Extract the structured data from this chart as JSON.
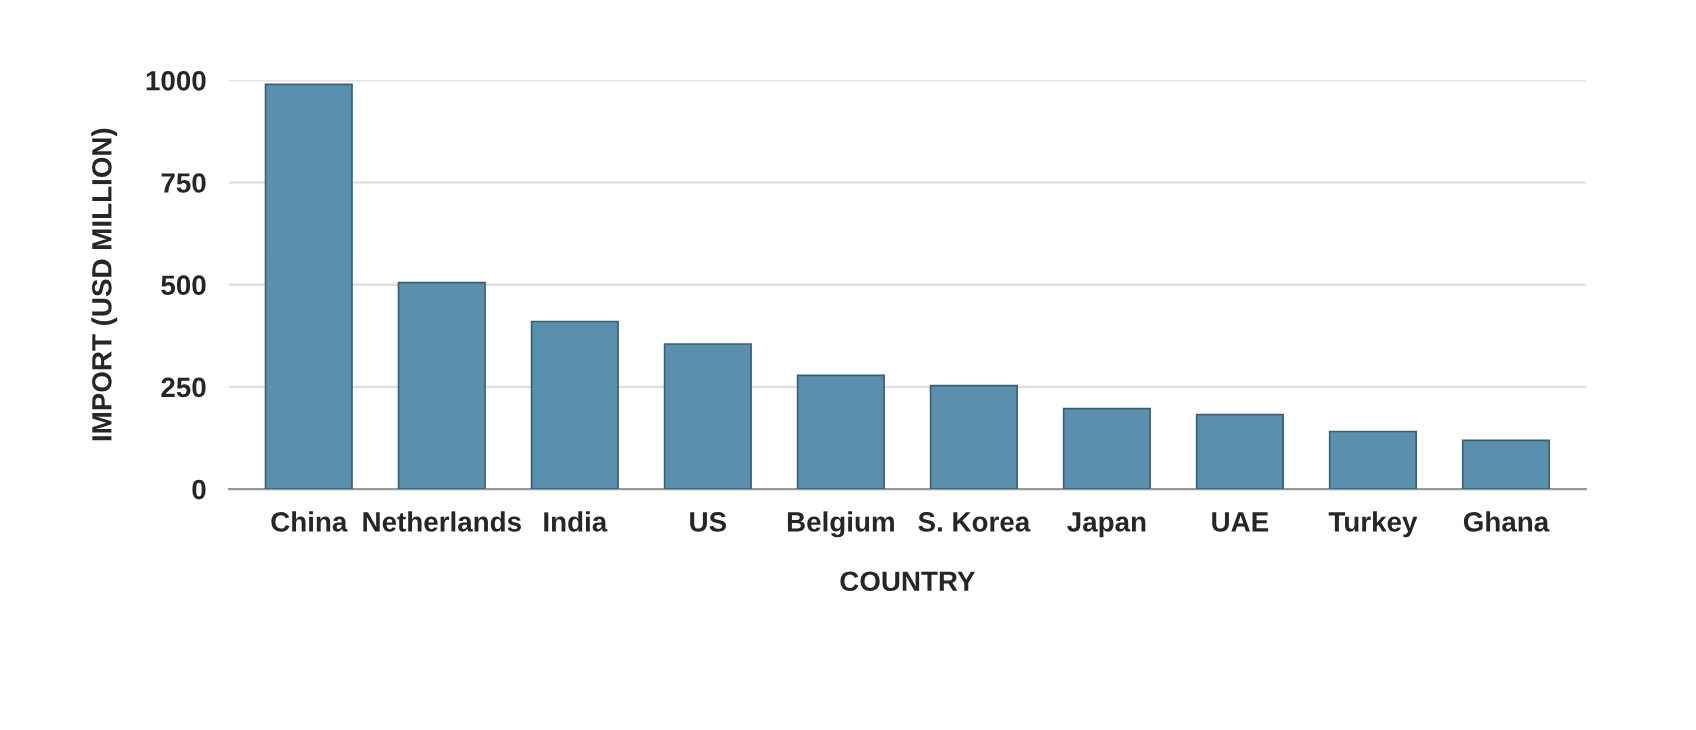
{
  "chart_data": {
    "type": "bar",
    "xlabel": "COUNTRY",
    "ylabel": "IMPORT (USD MILLION)",
    "categories": [
      "China",
      "Netherlands",
      "India",
      "US",
      "Belgium",
      "S. Korea",
      "Japan",
      "UAE",
      "Turkey",
      "Ghana"
    ],
    "values": [
      990,
      505,
      410,
      355,
      278,
      253,
      197,
      182,
      141,
      119
    ],
    "color": "#5a90ae",
    "ylim": [
      0,
      1000
    ],
    "yticks": [
      0,
      250,
      500,
      750,
      1000
    ],
    "grid": "y",
    "legend": false
  }
}
